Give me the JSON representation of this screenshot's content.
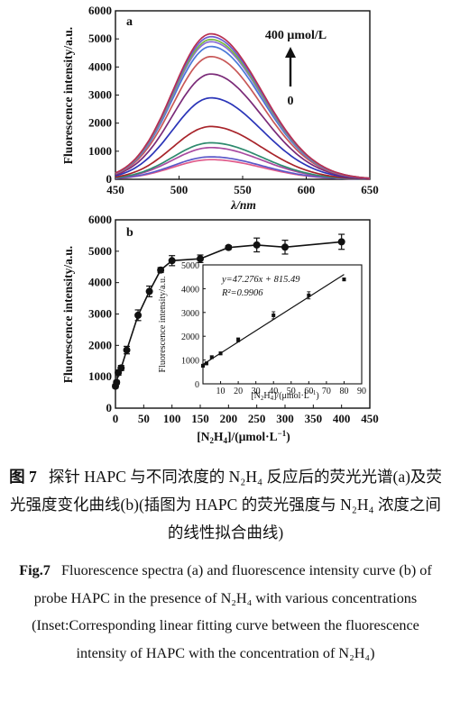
{
  "chart_data": [
    {
      "type": "line",
      "panel": "a",
      "xlabel": "λ/nm",
      "ylabel": "Fluorescence intensity/a.u.",
      "xlim": [
        450,
        650
      ],
      "ylim": [
        0,
        6000
      ],
      "x_ticks": [
        "450",
        "500",
        "550",
        "600",
        "650"
      ],
      "y_ticks": [
        "0",
        "1000",
        "2000",
        "3000",
        "4000",
        "5000",
        "6000"
      ],
      "annotation_top": "400 μmol/L",
      "annotation_bottom": "0",
      "peak_wavelength": 525,
      "series": [
        {
          "color": "#e05a8a",
          "peak": 700
        },
        {
          "color": "#5a58c8",
          "peak": 800
        },
        {
          "color": "#a84aa0",
          "peak": 1130
        },
        {
          "color": "#2e8a6e",
          "peak": 1300
        },
        {
          "color": "#a8242a",
          "peak": 1880
        },
        {
          "color": "#2a34b8",
          "peak": 2900
        },
        {
          "color": "#7a2a78",
          "peak": 3750
        },
        {
          "color": "#c85858",
          "peak": 4370
        },
        {
          "color": "#4a78d8",
          "peak": 4730
        },
        {
          "color": "#8a6ed8",
          "peak": 4900
        },
        {
          "color": "#7ab840",
          "peak": 4980
        },
        {
          "color": "#6a5ad0",
          "peak": 5080
        },
        {
          "color": "#b83050",
          "peak": 5180
        }
      ]
    },
    {
      "type": "line",
      "panel": "b",
      "xlabel": "[N2H4]/(μmol·L⁻¹)",
      "ylabel": "Fluorescence intensity/a.u.",
      "xlim": [
        0,
        450
      ],
      "ylim": [
        0,
        6000
      ],
      "x_ticks": [
        "0",
        "50",
        "100",
        "150",
        "200",
        "250",
        "300",
        "350",
        "400",
        "450"
      ],
      "y_ticks": [
        "0",
        "1000",
        "2000",
        "3000",
        "4000",
        "5000",
        "6000"
      ],
      "x": [
        0,
        2,
        5,
        10,
        20,
        40,
        60,
        80,
        100,
        150,
        200,
        250,
        300,
        400
      ],
      "values": [
        700,
        820,
        1130,
        1280,
        1850,
        2960,
        3720,
        4400,
        4700,
        4760,
        5120,
        5200,
        5130,
        5300
      ],
      "errors": [
        60,
        60,
        80,
        80,
        120,
        170,
        170,
        80,
        160,
        120,
        60,
        220,
        220,
        240
      ],
      "inset": {
        "type": "scatter",
        "xlabel": "[N2H4]/(μmol·L⁻¹)",
        "ylabel": "Fluorescence intensity/a.u.",
        "xlim": [
          0,
          90
        ],
        "ylim": [
          0,
          5000
        ],
        "x_ticks": [
          "10",
          "20",
          "30",
          "40",
          "50",
          "60",
          "70",
          "80",
          "90"
        ],
        "y_ticks": [
          "0",
          "1000",
          "2000",
          "3000",
          "4000",
          "5000"
        ],
        "x": [
          0,
          2,
          5,
          10,
          20,
          40,
          60,
          80
        ],
        "values": [
          760,
          860,
          1120,
          1280,
          1850,
          2880,
          3720,
          4390
        ],
        "errors": [
          60,
          60,
          60,
          60,
          80,
          150,
          150,
          60
        ],
        "fit_slope": 47.276,
        "fit_intercept": 815.49,
        "equation": "y=47.276x + 815.49",
        "r2": "R²=0.9906"
      }
    }
  ],
  "caption": {
    "cn_label": "图 7",
    "cn_text": "探针 HAPC 与不同浓度的 N₂H₄ 反应后的荧光光谱(a)及荧光强度变化曲线(b)(插图为 HAPC 的荧光强度与 N₂H₄ 浓度之间的线性拟合曲线)",
    "en_label": "Fig.7",
    "en_text": "Fluorescence spectra (a) and fluorescence intensity curve (b) of probe HAPC in the presence of N₂H₄ with various concentrations (Inset:Corresponding linear fitting curve between the fluorescence intensity of HAPC with the concentration of N₂H₄)"
  }
}
